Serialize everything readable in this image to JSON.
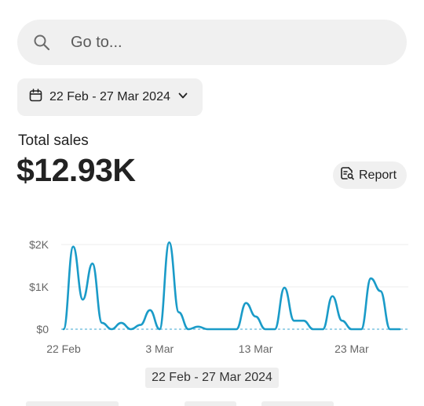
{
  "search": {
    "placeholder": "Go to...",
    "icon": "search-icon"
  },
  "date_filter": {
    "label": "22 Feb - 27 Mar 2024",
    "icon": "calendar-icon",
    "dropdown_icon": "chevron-down-icon"
  },
  "metric": {
    "label": "Total sales",
    "value": "$12.93K"
  },
  "report_button": {
    "label": "Report",
    "icon": "report-search-icon"
  },
  "chart_caption": "22 Feb - 27 Mar 2024",
  "colors": {
    "line": "#1a9bc8",
    "baseline": "#7cc4e0",
    "grid": "#ececec",
    "button_bg": "#f0f0f0"
  },
  "chart_data": {
    "type": "line",
    "title": "",
    "xlabel": "",
    "ylabel": "",
    "ylim": [
      0,
      2000
    ],
    "y_ticks": [
      {
        "value": 0,
        "label": "$0"
      },
      {
        "value": 1000,
        "label": "$1K"
      },
      {
        "value": 2000,
        "label": "$2K"
      }
    ],
    "x_ticks": [
      {
        "day": 0,
        "label": "22 Feb"
      },
      {
        "day": 10,
        "label": "3 Mar"
      },
      {
        "day": 20,
        "label": "13 Mar"
      },
      {
        "day": 30,
        "label": "23 Mar"
      }
    ],
    "grid": true,
    "series": [
      {
        "values": [
          [
            0,
            0
          ],
          [
            1,
            1950
          ],
          [
            2,
            700
          ],
          [
            3,
            1550
          ],
          [
            4,
            150
          ],
          [
            5,
            0
          ],
          [
            6,
            150
          ],
          [
            7,
            0
          ],
          [
            8,
            100
          ],
          [
            9,
            450
          ],
          [
            10,
            0
          ],
          [
            11,
            2050
          ],
          [
            12,
            400
          ],
          [
            13,
            0
          ],
          [
            14,
            60
          ],
          [
            15,
            0
          ],
          [
            16,
            0
          ],
          [
            17,
            0
          ],
          [
            18,
            0
          ],
          [
            19,
            620
          ],
          [
            20,
            300
          ],
          [
            21,
            0
          ],
          [
            22,
            0
          ],
          [
            23,
            980
          ],
          [
            24,
            200
          ],
          [
            25,
            200
          ],
          [
            26,
            0
          ],
          [
            27,
            0
          ],
          [
            28,
            780
          ],
          [
            29,
            200
          ],
          [
            30,
            0
          ],
          [
            31,
            0
          ],
          [
            32,
            1200
          ],
          [
            33,
            900
          ],
          [
            34,
            0
          ],
          [
            35,
            0
          ]
        ]
      }
    ]
  }
}
